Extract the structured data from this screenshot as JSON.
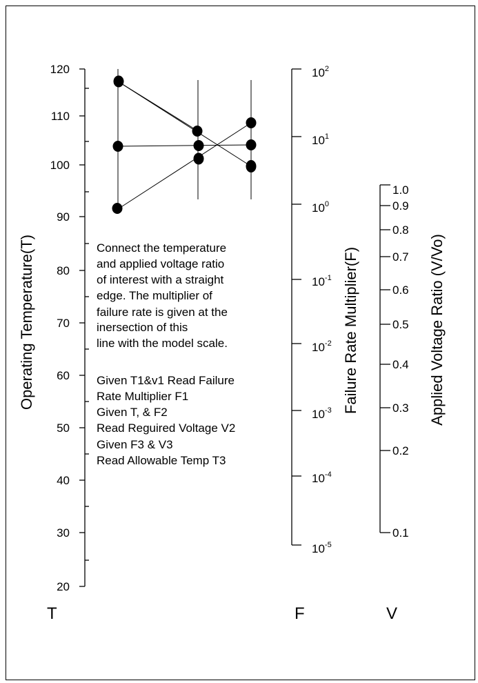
{
  "temperature_axis": {
    "title": "Operating Temperature(T)",
    "letter": "T",
    "ticks": [
      "120",
      "110",
      "100",
      "90",
      "80",
      "70",
      "60",
      "50",
      "40",
      "30",
      "20"
    ]
  },
  "failure_axis": {
    "title": "Failure Rate Multiplier(F)",
    "letter": "F",
    "ticks": [
      {
        "base": "10",
        "exp": "2"
      },
      {
        "base": "10",
        "exp": "1"
      },
      {
        "base": "10",
        "exp": "0"
      },
      {
        "base": "10",
        "exp": "-1"
      },
      {
        "base": "10",
        "exp": "-2"
      },
      {
        "base": "10",
        "exp": "-3"
      },
      {
        "base": "10",
        "exp": "-4"
      },
      {
        "base": "10",
        "exp": "-5"
      }
    ]
  },
  "voltage_axis": {
    "title": "Applied Voltage Ratio  (V/Vo)",
    "letter": "V",
    "ticks": [
      "1.0",
      "0.9",
      "0.8",
      "0.7",
      "0.6",
      "0.5",
      "0.4",
      "0.3",
      "0.2",
      "0.1"
    ]
  },
  "instructions": {
    "paragraph": [
      "Connect the temperature",
      "and applied voltage ratio",
      "of interest with a straight",
      "edge. The multiplier of",
      "failure rate is given at the",
      "inersection of this",
      "line with the model scale."
    ],
    "steps": [
      "Given T1&v1 Read Failure",
      "Rate Multiplier F1",
      "Given T, & F2",
      "Read Reguired Voltage V2",
      "Given F3 & V3",
      "Read Allowable Temp T3"
    ]
  },
  "colors": {
    "ink": "#000000",
    "background": "#ffffff"
  }
}
